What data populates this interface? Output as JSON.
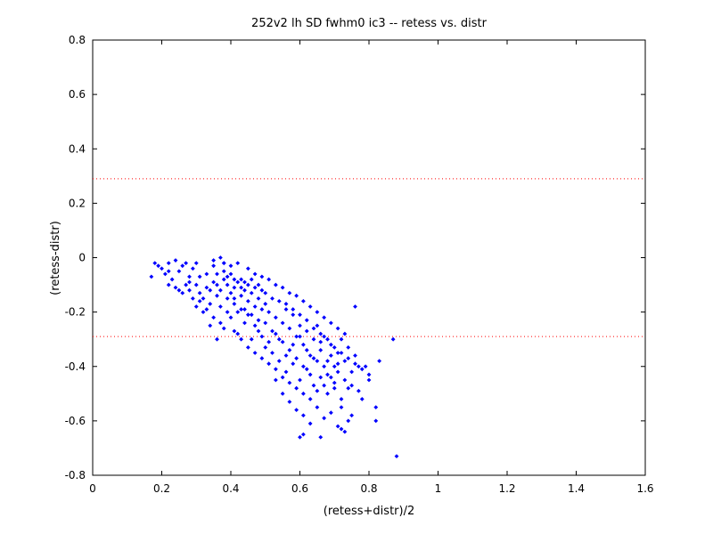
{
  "chart_data": {
    "type": "scatter",
    "title": "252v2 lh SD fwhm0 ic3 -- retess vs. distr",
    "xlabel": "(retess+distr)/2",
    "ylabel": "(retess-distr)",
    "xlim": [
      0,
      1.6
    ],
    "ylim": [
      -0.8,
      0.8
    ],
    "xticks": [
      0,
      0.2,
      0.4,
      0.6,
      0.8,
      1,
      1.2,
      1.4,
      1.6
    ],
    "yticks": [
      -0.8,
      -0.6,
      -0.4,
      -0.2,
      0,
      0.2,
      0.4,
      0.6,
      0.8
    ],
    "xtick_labels": [
      "0",
      "0.2",
      "0.4",
      "0.6",
      "0.8",
      "1",
      "1.2",
      "1.4",
      "1.6"
    ],
    "ytick_labels": [
      "-0.8",
      "-0.6",
      "-0.4",
      "-0.2",
      "0",
      "0.2",
      "0.4",
      "0.6",
      "0.8"
    ],
    "grid": false,
    "marker_color": "#0000ff",
    "reference_line_color": "#ff0000",
    "reference_lines_y": [
      0.29,
      -0.29
    ],
    "points": [
      [
        0.17,
        -0.07
      ],
      [
        0.18,
        -0.02
      ],
      [
        0.19,
        -0.03
      ],
      [
        0.2,
        -0.04
      ],
      [
        0.21,
        -0.06
      ],
      [
        0.22,
        -0.1
      ],
      [
        0.22,
        -0.02
      ],
      [
        0.23,
        -0.08
      ],
      [
        0.24,
        -0.11
      ],
      [
        0.24,
        -0.01
      ],
      [
        0.25,
        -0.12
      ],
      [
        0.25,
        -0.05
      ],
      [
        0.26,
        -0.03
      ],
      [
        0.27,
        -0.1
      ],
      [
        0.27,
        -0.02
      ],
      [
        0.28,
        -0.12
      ],
      [
        0.28,
        -0.07
      ],
      [
        0.29,
        -0.15
      ],
      [
        0.29,
        -0.04
      ],
      [
        0.3,
        -0.1
      ],
      [
        0.3,
        -0.02
      ],
      [
        0.31,
        -0.13
      ],
      [
        0.31,
        -0.07
      ],
      [
        0.32,
        -0.2
      ],
      [
        0.32,
        -0.15
      ],
      [
        0.33,
        -0.11
      ],
      [
        0.33,
        -0.06
      ],
      [
        0.34,
        -0.17
      ],
      [
        0.34,
        -0.12
      ],
      [
        0.35,
        -0.09
      ],
      [
        0.35,
        -0.03
      ],
      [
        0.36,
        -0.14
      ],
      [
        0.36,
        -0.1
      ],
      [
        0.37,
        -0.18
      ],
      [
        0.37,
        -0.12
      ],
      [
        0.38,
        -0.08
      ],
      [
        0.38,
        -0.02
      ],
      [
        0.39,
        -0.15
      ],
      [
        0.39,
        -0.1
      ],
      [
        0.4,
        -0.13
      ],
      [
        0.4,
        -0.06
      ],
      [
        0.41,
        -0.17
      ],
      [
        0.41,
        -0.11
      ],
      [
        0.42,
        -0.2
      ],
      [
        0.42,
        -0.09
      ],
      [
        0.43,
        -0.14
      ],
      [
        0.43,
        -0.08
      ],
      [
        0.44,
        -0.19
      ],
      [
        0.44,
        -0.12
      ],
      [
        0.45,
        -0.16
      ],
      [
        0.45,
        -0.1
      ],
      [
        0.46,
        -0.21
      ],
      [
        0.46,
        -0.13
      ],
      [
        0.47,
        -0.18
      ],
      [
        0.47,
        -0.11
      ],
      [
        0.48,
        -0.23
      ],
      [
        0.48,
        -0.15
      ],
      [
        0.49,
        -0.19
      ],
      [
        0.49,
        -0.12
      ],
      [
        0.5,
        -0.24
      ],
      [
        0.5,
        -0.17
      ],
      [
        0.51,
        -0.2
      ],
      [
        0.52,
        -0.27
      ],
      [
        0.53,
        -0.22
      ],
      [
        0.54,
        -0.3
      ],
      [
        0.55,
        -0.24
      ],
      [
        0.56,
        -0.19
      ],
      [
        0.57,
        -0.26
      ],
      [
        0.58,
        -0.21
      ],
      [
        0.59,
        -0.29
      ],
      [
        0.6,
        -0.25
      ],
      [
        0.61,
        -0.32
      ],
      [
        0.62,
        -0.27
      ],
      [
        0.63,
        -0.36
      ],
      [
        0.64,
        -0.3
      ],
      [
        0.65,
        -0.25
      ],
      [
        0.66,
        -0.34
      ],
      [
        0.67,
        -0.29
      ],
      [
        0.68,
        -0.38
      ],
      [
        0.69,
        -0.32
      ],
      [
        0.7,
        -0.4
      ],
      [
        0.71,
        -0.35
      ],
      [
        0.72,
        -0.3
      ],
      [
        0.73,
        -0.38
      ],
      [
        0.74,
        -0.33
      ],
      [
        0.75,
        -0.42
      ],
      [
        0.76,
        -0.36
      ],
      [
        0.77,
        -0.4
      ],
      [
        0.22,
        -0.05
      ],
      [
        0.26,
        -0.13
      ],
      [
        0.3,
        -0.18
      ],
      [
        0.34,
        -0.25
      ],
      [
        0.36,
        -0.3
      ],
      [
        0.38,
        -0.26
      ],
      [
        0.4,
        -0.22
      ],
      [
        0.42,
        -0.28
      ],
      [
        0.44,
        -0.24
      ],
      [
        0.46,
        -0.3
      ],
      [
        0.48,
        -0.27
      ],
      [
        0.5,
        -0.33
      ],
      [
        0.52,
        -0.35
      ],
      [
        0.54,
        -0.38
      ],
      [
        0.56,
        -0.42
      ],
      [
        0.58,
        -0.39
      ],
      [
        0.6,
        -0.45
      ],
      [
        0.62,
        -0.41
      ],
      [
        0.64,
        -0.47
      ],
      [
        0.66,
        -0.44
      ],
      [
        0.68,
        -0.5
      ],
      [
        0.7,
        -0.46
      ],
      [
        0.72,
        -0.52
      ],
      [
        0.74,
        -0.48
      ],
      [
        0.53,
        -0.45
      ],
      [
        0.55,
        -0.5
      ],
      [
        0.57,
        -0.53
      ],
      [
        0.59,
        -0.56
      ],
      [
        0.61,
        -0.58
      ],
      [
        0.63,
        -0.61
      ],
      [
        0.65,
        -0.55
      ],
      [
        0.67,
        -0.59
      ],
      [
        0.69,
        -0.57
      ],
      [
        0.71,
        -0.62
      ],
      [
        0.73,
        -0.64
      ],
      [
        0.75,
        -0.58
      ],
      [
        0.6,
        -0.66
      ],
      [
        0.61,
        -0.65
      ],
      [
        0.66,
        -0.66
      ],
      [
        0.72,
        -0.63
      ],
      [
        0.82,
        -0.55
      ],
      [
        0.82,
        -0.6
      ],
      [
        0.83,
        -0.38
      ],
      [
        0.87,
        -0.3
      ],
      [
        0.88,
        -0.73
      ],
      [
        0.76,
        -0.18
      ],
      [
        0.79,
        -0.4
      ],
      [
        0.8,
        -0.45
      ],
      [
        0.35,
        -0.01
      ],
      [
        0.37,
        0.0
      ],
      [
        0.38,
        -0.02
      ],
      [
        0.4,
        -0.03
      ],
      [
        0.42,
        -0.02
      ],
      [
        0.45,
        -0.04
      ],
      [
        0.47,
        -0.06
      ],
      [
        0.49,
        -0.07
      ],
      [
        0.51,
        -0.08
      ],
      [
        0.53,
        -0.1
      ],
      [
        0.55,
        -0.11
      ],
      [
        0.57,
        -0.13
      ],
      [
        0.59,
        -0.14
      ],
      [
        0.61,
        -0.16
      ],
      [
        0.63,
        -0.18
      ],
      [
        0.65,
        -0.2
      ],
      [
        0.67,
        -0.22
      ],
      [
        0.69,
        -0.24
      ],
      [
        0.71,
        -0.26
      ],
      [
        0.73,
        -0.28
      ],
      [
        0.41,
        -0.27
      ],
      [
        0.43,
        -0.3
      ],
      [
        0.45,
        -0.33
      ],
      [
        0.47,
        -0.35
      ],
      [
        0.49,
        -0.37
      ],
      [
        0.51,
        -0.39
      ],
      [
        0.53,
        -0.41
      ],
      [
        0.55,
        -0.44
      ],
      [
        0.57,
        -0.46
      ],
      [
        0.59,
        -0.48
      ],
      [
        0.61,
        -0.5
      ],
      [
        0.63,
        -0.52
      ],
      [
        0.65,
        -0.49
      ],
      [
        0.67,
        -0.47
      ],
      [
        0.69,
        -0.44
      ],
      [
        0.71,
        -0.42
      ],
      [
        0.73,
        -0.45
      ],
      [
        0.75,
        -0.47
      ],
      [
        0.77,
        -0.49
      ],
      [
        0.78,
        -0.52
      ],
      [
        0.28,
        -0.09
      ],
      [
        0.31,
        -0.16
      ],
      [
        0.33,
        -0.19
      ],
      [
        0.35,
        -0.22
      ],
      [
        0.37,
        -0.24
      ],
      [
        0.39,
        -0.2
      ],
      [
        0.41,
        -0.15
      ],
      [
        0.43,
        -0.19
      ],
      [
        0.45,
        -0.21
      ],
      [
        0.47,
        -0.25
      ],
      [
        0.49,
        -0.29
      ],
      [
        0.51,
        -0.31
      ],
      [
        0.53,
        -0.28
      ],
      [
        0.55,
        -0.31
      ],
      [
        0.57,
        -0.34
      ],
      [
        0.59,
        -0.37
      ],
      [
        0.61,
        -0.4
      ],
      [
        0.63,
        -0.43
      ],
      [
        0.65,
        -0.38
      ],
      [
        0.67,
        -0.4
      ],
      [
        0.69,
        -0.36
      ],
      [
        0.71,
        -0.39
      ],
      [
        0.56,
        -0.36
      ],
      [
        0.58,
        -0.32
      ],
      [
        0.6,
        -0.29
      ],
      [
        0.62,
        -0.34
      ],
      [
        0.64,
        -0.37
      ],
      [
        0.66,
        -0.31
      ],
      [
        0.68,
        -0.43
      ],
      [
        0.7,
        -0.48
      ],
      [
        0.72,
        -0.55
      ],
      [
        0.74,
        -0.6
      ],
      [
        0.36,
        -0.06
      ],
      [
        0.38,
        -0.05
      ],
      [
        0.39,
        -0.07
      ],
      [
        0.41,
        -0.08
      ],
      [
        0.43,
        -0.11
      ],
      [
        0.44,
        -0.09
      ],
      [
        0.46,
        -0.08
      ],
      [
        0.48,
        -0.1
      ],
      [
        0.5,
        -0.13
      ],
      [
        0.52,
        -0.15
      ],
      [
        0.54,
        -0.16
      ],
      [
        0.56,
        -0.17
      ],
      [
        0.58,
        -0.19
      ],
      [
        0.6,
        -0.21
      ],
      [
        0.62,
        -0.23
      ],
      [
        0.64,
        -0.26
      ],
      [
        0.66,
        -0.28
      ],
      [
        0.68,
        -0.3
      ],
      [
        0.7,
        -0.33
      ],
      [
        0.72,
        -0.35
      ],
      [
        0.74,
        -0.37
      ],
      [
        0.76,
        -0.39
      ],
      [
        0.78,
        -0.41
      ],
      [
        0.8,
        -0.43
      ]
    ]
  }
}
